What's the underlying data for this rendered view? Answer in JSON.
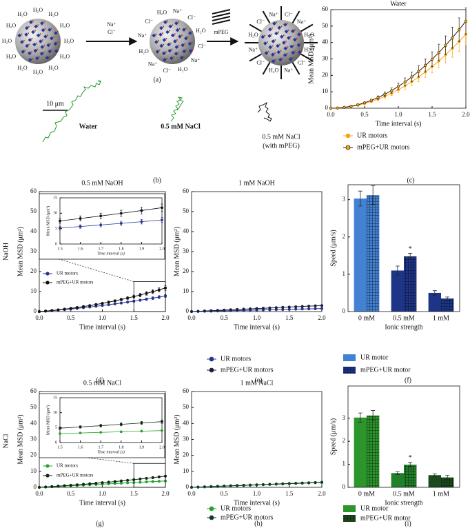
{
  "diagram": {
    "label": "(a)",
    "h2o": "H₂O",
    "na": "Na⁺",
    "cl": "Cl⁻",
    "mpeg": "mPEG"
  },
  "trajectories": {
    "label": "(b)",
    "scale": "10 μm",
    "items": [
      {
        "text": "Water"
      },
      {
        "text": "0.5 mM NaCl"
      },
      {
        "text": "0.5 mM NaCl",
        "note": "(with mPEG)"
      }
    ]
  },
  "chart_data": [
    {
      "type": "line",
      "panel": "(c)",
      "title": "Water",
      "xlabel": "Time interval (s)",
      "ylabel": "Mean MSD (μm²)",
      "legend": "below",
      "x": [
        0,
        0.1,
        0.2,
        0.3,
        0.4,
        0.5,
        0.6,
        0.7,
        0.8,
        0.9,
        1,
        1.1,
        1.2,
        1.3,
        1.4,
        1.5,
        1.6,
        1.7,
        1.8,
        1.9,
        2
      ],
      "xlim": [
        0,
        2
      ],
      "ylim": [
        0,
        60
      ],
      "xticks": [
        {
          "value": 0,
          "label": "0.0"
        },
        0.5,
        {
          "value": 1,
          "label": "1.0"
        },
        1.5,
        {
          "value": 2,
          "label": "2.0"
        }
      ],
      "yticks": [
        0,
        10,
        20,
        30,
        40,
        50,
        60
      ],
      "series": [
        {
          "name": "UR motors",
          "color": "#f9a51a",
          "marker_color": "#f9a51a",
          "values": [
            0,
            0.11,
            0.45,
            1.0,
            1.8,
            2.8,
            4.1,
            5.5,
            7.2,
            9.1,
            11.3,
            13.6,
            16.2,
            19.0,
            22.1,
            25.3,
            28.8,
            32.5,
            36.5,
            40.6,
            45.0
          ],
          "errors": [
            0,
            0.02,
            0.07,
            0.15,
            0.3,
            0.4,
            0.6,
            0.8,
            1.1,
            1.4,
            1.7,
            2.0,
            2.4,
            2.9,
            3.3,
            3.8,
            4.3,
            4.9,
            5.5,
            6.1,
            6.8
          ]
        },
        {
          "name": "mPEG+UR motors",
          "color": "#2b1d08",
          "marker_color": "#f9a51a",
          "values": [
            0,
            0.13,
            0.53,
            1.2,
            2.1,
            3.3,
            4.8,
            6.5,
            8.5,
            10.7,
            13.3,
            16.0,
            19.1,
            22.4,
            26.0,
            29.8,
            33.9,
            38.3,
            42.9,
            47.8,
            53.0
          ],
          "errors": [
            0,
            0.02,
            0.08,
            0.2,
            0.3,
            0.5,
            0.7,
            1.0,
            1.3,
            1.6,
            2.0,
            2.4,
            2.9,
            3.4,
            3.9,
            4.5,
            5.1,
            5.7,
            6.4,
            7.2,
            8.0
          ]
        }
      ]
    },
    {
      "type": "line",
      "panel": "(d)",
      "title": "0.5 mM NaOH",
      "row_label": "NaOH",
      "xlabel": "Time interval (s)",
      "ylabel": "Mean MSD (μm²)",
      "legend": "lower left",
      "x": [
        0,
        0.1,
        0.2,
        0.3,
        0.4,
        0.5,
        0.6,
        0.7,
        0.8,
        0.9,
        1,
        1.1,
        1.2,
        1.3,
        1.4,
        1.5,
        1.6,
        1.7,
        1.8,
        1.9,
        2
      ],
      "xlim": [
        0,
        2
      ],
      "ylim": [
        0,
        60
      ],
      "xticks": [
        {
          "value": 0,
          "label": "0.0"
        },
        0.5,
        {
          "value": 1,
          "label": "1.0"
        },
        1.5,
        {
          "value": 2,
          "label": "2.0"
        }
      ],
      "yticks": [
        0,
        10,
        20,
        30,
        40,
        50,
        60
      ],
      "series": [
        {
          "name": "UR motors",
          "color": "#26358f",
          "marker_color": "#26358f",
          "values": [
            0,
            0.22,
            0.47,
            0.73,
            1.0,
            1.3,
            1.61,
            1.94,
            2.29,
            2.65,
            3.03,
            3.43,
            3.85,
            4.28,
            4.73,
            5.2,
            5.68,
            6.19,
            6.71,
            7.25,
            7.8
          ],
          "errors": [
            0,
            0.02,
            0.05,
            0.07,
            0.1,
            0.13,
            0.16,
            0.19,
            0.23,
            0.27,
            0.3,
            0.34,
            0.39,
            0.43,
            0.47,
            0.52,
            0.57,
            0.62,
            0.67,
            0.73,
            0.78
          ]
        },
        {
          "name": "mPEG+UR motors",
          "color": "#111111",
          "marker_color": "#111111",
          "values": [
            0,
            0.25,
            0.53,
            0.85,
            1.21,
            1.6,
            2.03,
            2.49,
            2.99,
            3.53,
            4.1,
            4.71,
            5.35,
            6.03,
            6.75,
            7.5,
            8.29,
            9.11,
            9.97,
            10.87,
            11.8
          ],
          "errors": [
            0,
            0.03,
            0.05,
            0.09,
            0.12,
            0.16,
            0.2,
            0.25,
            0.3,
            0.35,
            0.41,
            0.47,
            0.54,
            0.6,
            0.68,
            0.75,
            0.83,
            0.91,
            1.0,
            1.09,
            1.18
          ]
        }
      ],
      "inset": {
        "xlabel": "Time interval (s)",
        "ylabel": "Mean MSD (μm²)",
        "xlim": [
          1.5,
          2
        ],
        "ylim": [
          0,
          15
        ],
        "xticks": [
          1.5,
          1.6,
          1.7,
          1.8,
          1.9,
          {
            "value": 2,
            "label": "2.0"
          }
        ],
        "yticks": [
          0,
          5,
          10,
          15
        ]
      }
    },
    {
      "type": "line",
      "panel": "(e)",
      "title": "1 mM NaOH",
      "xlabel": "Time interval (s)",
      "ylabel": "Mean MSD (μm²)",
      "legend": "below",
      "x": [
        0,
        0.1,
        0.2,
        0.3,
        0.4,
        0.5,
        0.6,
        0.7,
        0.8,
        0.9,
        1,
        1.1,
        1.2,
        1.3,
        1.4,
        1.5,
        1.6,
        1.7,
        1.8,
        1.9,
        2
      ],
      "xlim": [
        0,
        2
      ],
      "ylim": [
        0,
        60
      ],
      "xticks": [
        {
          "value": 0,
          "label": "0.0"
        },
        0.5,
        {
          "value": 1,
          "label": "1.0"
        },
        1.5,
        {
          "value": 2,
          "label": "2.0"
        }
      ],
      "yticks": [
        0,
        10,
        20,
        30,
        40,
        50,
        60
      ],
      "series": [
        {
          "name": "UR motors",
          "color": "#26358f",
          "marker_color": "#26358f",
          "values": [
            0,
            0.08,
            0.15,
            0.23,
            0.3,
            0.38,
            0.45,
            0.53,
            0.6,
            0.68,
            0.75,
            0.83,
            0.9,
            0.98,
            1.05,
            1.13,
            1.2,
            1.28,
            1.35,
            1.43,
            1.5
          ]
        },
        {
          "name": "mPEG+UR motors",
          "color": "#1a1f3a",
          "marker_color": "#1a1f3a",
          "values": [
            0,
            0.15,
            0.3,
            0.45,
            0.6,
            0.75,
            0.9,
            1.05,
            1.2,
            1.35,
            1.5,
            1.65,
            1.8,
            1.95,
            2.1,
            2.25,
            2.4,
            2.55,
            2.7,
            2.85,
            3.0
          ]
        }
      ]
    },
    {
      "type": "bar",
      "panel": "(f)",
      "xlabel": "Ionic strength",
      "ylabel": "Speed (μm/s)",
      "legend": "below",
      "categories": [
        "0 mM",
        "0.5 mM",
        "1 mM"
      ],
      "ylim": [
        0,
        3.4
      ],
      "yticks": [
        0,
        1,
        2,
        3
      ],
      "series": [
        {
          "name": "UR motor",
          "colors": [
            "#4382d2",
            "#1e3587",
            "#1e3587"
          ],
          "values": [
            3.03,
            1.1,
            0.5
          ],
          "errors": [
            0.2,
            0.12,
            0.06
          ]
        },
        {
          "name": "mPEG+UR motor",
          "pattern": "crosshatch",
          "colors": [
            "#4382d2",
            "#1e3587",
            "#1e3587"
          ],
          "values": [
            3.12,
            1.48,
            0.35
          ],
          "errors": [
            0.25,
            0.08,
            0.04
          ]
        }
      ],
      "annotations": [
        {
          "text": "*",
          "x": "0.5 mM",
          "series": "mPEG+UR motor"
        }
      ]
    },
    {
      "type": "line",
      "panel": "(g)",
      "title": "0.5 mM NaCl",
      "row_label": "NaCl",
      "xlabel": "Time interval (s)",
      "ylabel": "Mean MSD (μm²)",
      "legend": "lower left",
      "x": [
        0,
        0.1,
        0.2,
        0.3,
        0.4,
        0.5,
        0.6,
        0.7,
        0.8,
        0.9,
        1,
        1.1,
        1.2,
        1.3,
        1.4,
        1.5,
        1.6,
        1.7,
        1.8,
        1.9,
        2
      ],
      "xlim": [
        0,
        2
      ],
      "ylim": [
        0,
        60
      ],
      "xticks": [
        {
          "value": 0,
          "label": "0.0"
        },
        0.5,
        {
          "value": 1,
          "label": "1.0"
        },
        1.5,
        {
          "value": 2,
          "label": "2.0"
        }
      ],
      "yticks": [
        0,
        10,
        20,
        30,
        40,
        50,
        60
      ],
      "series": [
        {
          "name": "UR motors",
          "color": "#27a32f",
          "marker_color": "#27a32f",
          "values": [
            0,
            0.2,
            0.4,
            0.6,
            0.8,
            1,
            1.2,
            1.4,
            1.6,
            1.8,
            2,
            2.2,
            2.4,
            2.6,
            2.8,
            3,
            3.2,
            3.4,
            3.6,
            3.8,
            4
          ],
          "errors": [
            0,
            0.01,
            0.02,
            0.03,
            0.04,
            0.05,
            0.06,
            0.07,
            0.08,
            0.09,
            0.1,
            0.11,
            0.12,
            0.13,
            0.14,
            0.15,
            0.16,
            0.17,
            0.18,
            0.19,
            0.2
          ]
        },
        {
          "name": "mPEG+UR motors",
          "color": "#0e2a12",
          "marker_color": "#0e2a12",
          "values": [
            0,
            0.24,
            0.48,
            0.74,
            1.02,
            1.3,
            1.6,
            1.9,
            2.22,
            2.56,
            2.9,
            3.26,
            3.62,
            4.0,
            4.4,
            4.8,
            5.22,
            5.64,
            6.08,
            6.54,
            7.0
          ],
          "errors": [
            0,
            0.02,
            0.04,
            0.06,
            0.08,
            0.1,
            0.13,
            0.15,
            0.18,
            0.2,
            0.23,
            0.26,
            0.29,
            0.32,
            0.35,
            0.38,
            0.42,
            0.45,
            0.49,
            0.52,
            0.56
          ]
        }
      ],
      "inset": {
        "xlabel": "Time interval (s)",
        "ylabel": "Mean MSD (μm²)",
        "xlim": [
          1.5,
          2
        ],
        "ylim": [
          0,
          15
        ],
        "xticks": [
          1.5,
          1.6,
          1.7,
          1.8,
          1.9,
          {
            "value": 2,
            "label": "2.0"
          }
        ],
        "yticks": [
          0,
          5,
          10,
          15
        ]
      }
    },
    {
      "type": "line",
      "panel": "(h)",
      "title": "1 mM NaCl",
      "xlabel": "Time interval (s)",
      "ylabel": "Mean MSD (μm²)",
      "legend": "below",
      "x": [
        0,
        0.1,
        0.2,
        0.3,
        0.4,
        0.5,
        0.6,
        0.7,
        0.8,
        0.9,
        1,
        1.1,
        1.2,
        1.3,
        1.4,
        1.5,
        1.6,
        1.7,
        1.8,
        1.9,
        2
      ],
      "xlim": [
        0,
        2
      ],
      "ylim": [
        0,
        60
      ],
      "xticks": [
        {
          "value": 0,
          "label": "0.0"
        },
        0.5,
        {
          "value": 1,
          "label": "1.0"
        },
        1.5,
        {
          "value": 2,
          "label": "2.0"
        }
      ],
      "yticks": [
        0,
        10,
        20,
        30,
        40,
        50,
        60
      ],
      "series": [
        {
          "name": "UR motors",
          "color": "#27a32f",
          "marker_color": "#27a32f",
          "values": [
            0,
            0.15,
            0.3,
            0.45,
            0.6,
            0.75,
            0.9,
            1.05,
            1.2,
            1.35,
            1.5,
            1.65,
            1.8,
            1.95,
            2.1,
            2.25,
            2.4,
            2.55,
            2.7,
            2.85,
            3.0
          ]
        },
        {
          "name": "mPEG+UR motors",
          "color": "#133a26",
          "marker_color": "#133a26",
          "values": [
            0,
            0.16,
            0.32,
            0.48,
            0.64,
            0.8,
            0.96,
            1.12,
            1.28,
            1.44,
            1.6,
            1.76,
            1.92,
            2.08,
            2.24,
            2.4,
            2.56,
            2.72,
            2.88,
            3.04,
            3.2
          ]
        }
      ]
    },
    {
      "type": "bar",
      "panel": "(i)",
      "xlabel": "Ionic strength",
      "ylabel": "Speed (μm/s)",
      "legend": "below",
      "categories": [
        "0 mM",
        "0.5 mM",
        "1 mM"
      ],
      "ylim": [
        0,
        4.4
      ],
      "yticks": [
        0,
        1,
        2,
        3
      ],
      "series": [
        {
          "name": "UR motor",
          "colors": [
            "#2c952c",
            "#23802a",
            "#1b4a1d"
          ],
          "values": [
            3.03,
            0.62,
            0.53
          ],
          "errors": [
            0.2,
            0.06,
            0.05
          ]
        },
        {
          "name": "mPEG+UR motor",
          "pattern": "crosshatch",
          "colors": [
            "#2c952c",
            "#23802a",
            "#1b4a1d"
          ],
          "values": [
            3.12,
            0.98,
            0.43
          ],
          "errors": [
            0.22,
            0.1,
            0.09
          ]
        }
      ],
      "annotations": [
        {
          "text": "*",
          "x": "0.5 mM",
          "series": "mPEG+UR motor"
        }
      ]
    }
  ]
}
